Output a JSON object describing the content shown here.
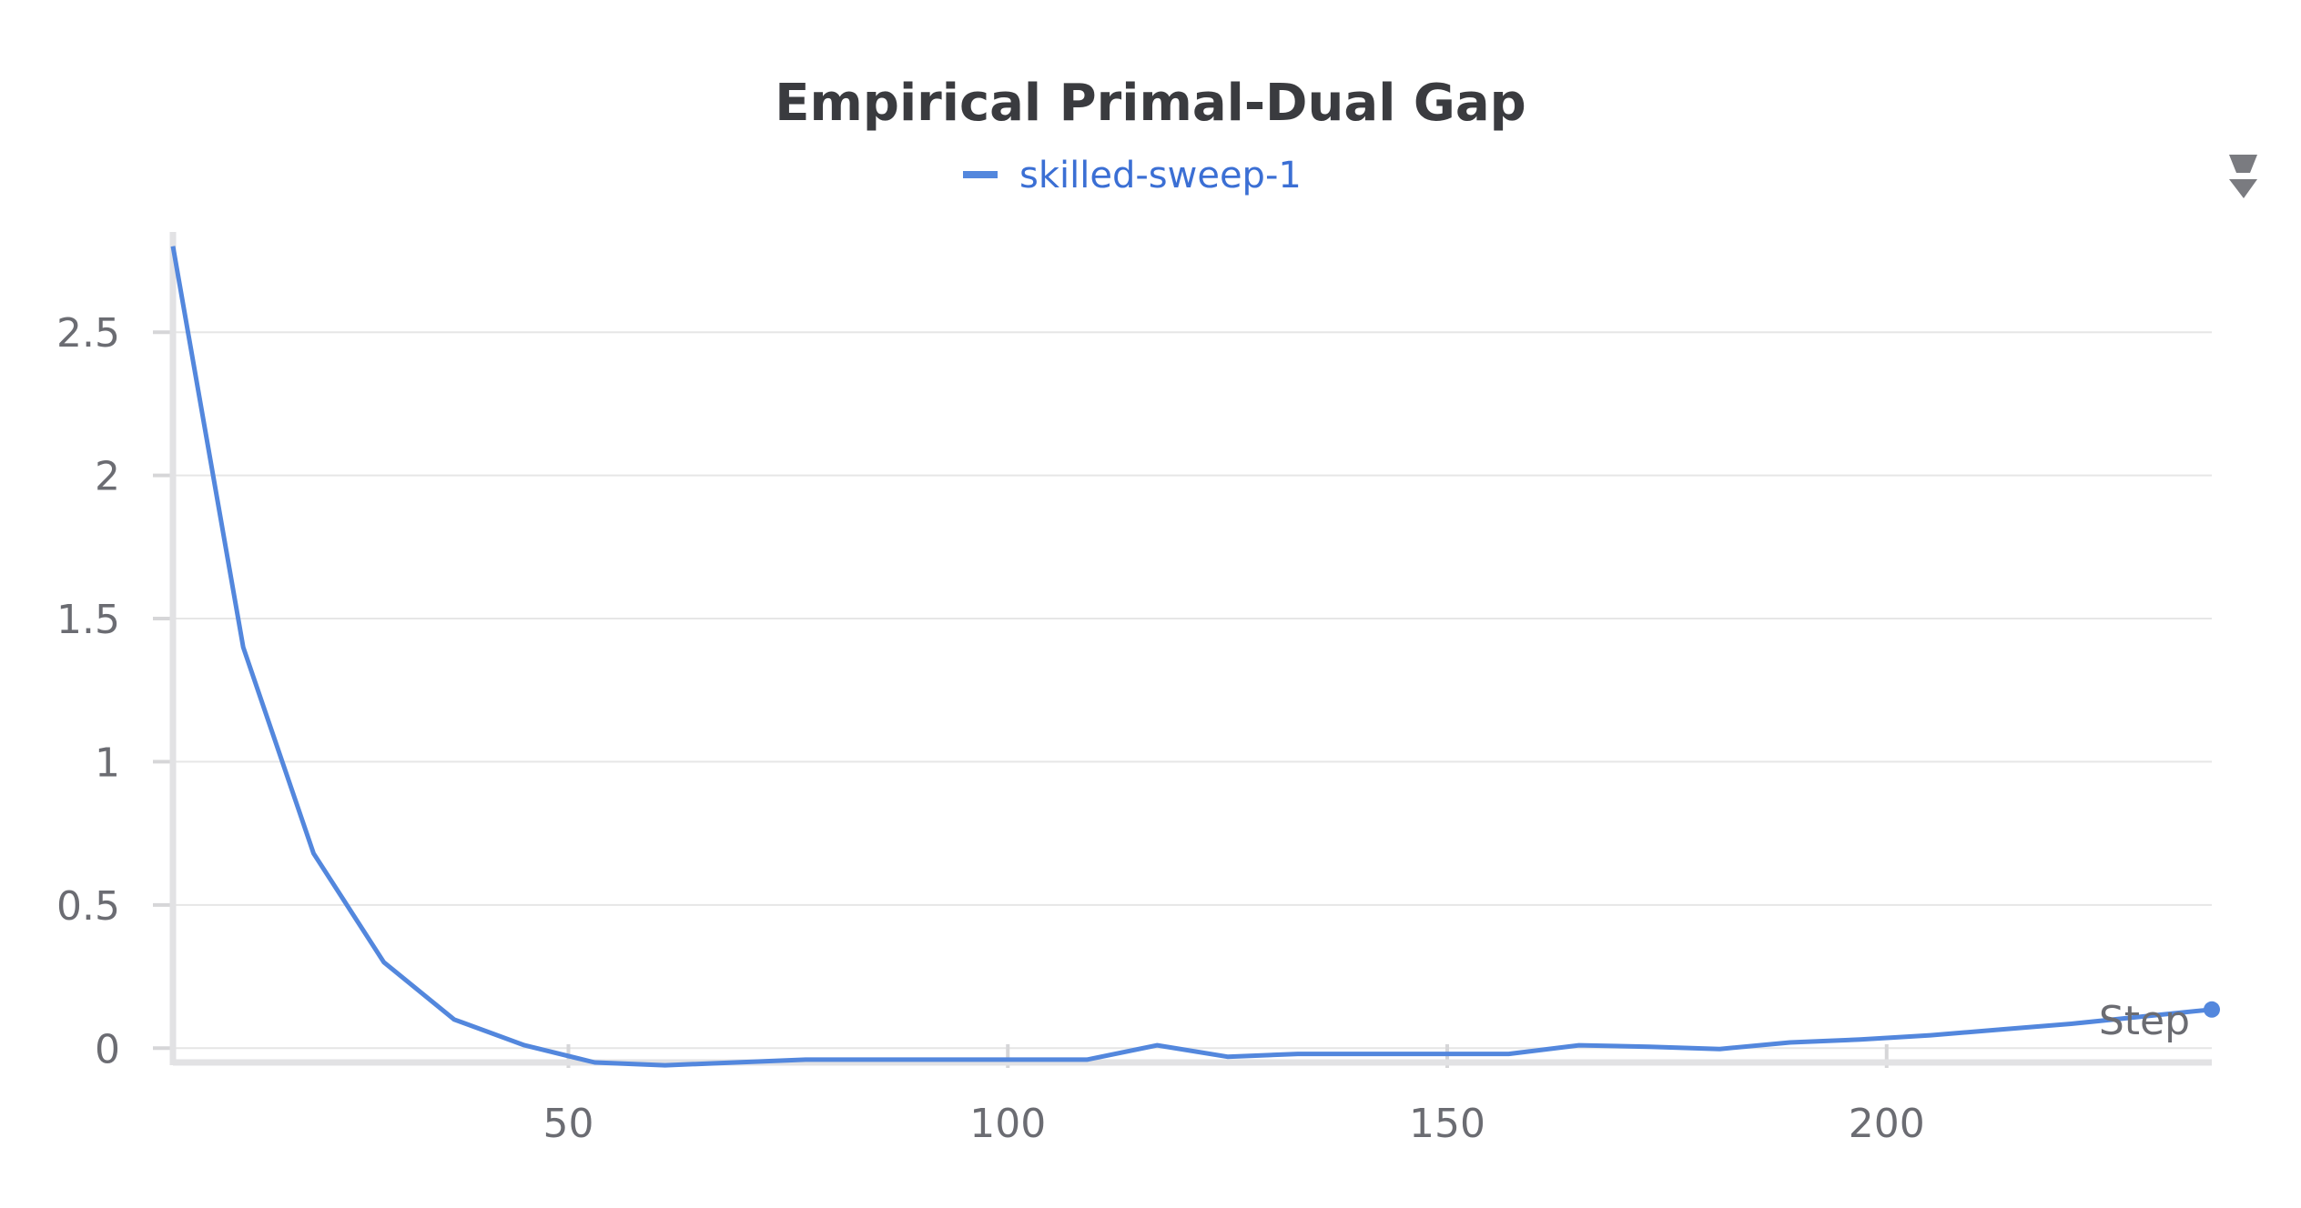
{
  "chart_data": {
    "type": "line",
    "title": "Empirical Primal-Dual Gap",
    "xlabel": "Step",
    "ylabel": "",
    "xlim": [
      5,
      237
    ],
    "ylim": [
      -0.05,
      2.85
    ],
    "xticks": [
      50,
      100,
      150,
      200
    ],
    "yticks": [
      0,
      0.5,
      1,
      1.5,
      2,
      2.5
    ],
    "ytick_labels": [
      "0",
      "0.5",
      "1",
      "1.5",
      "2",
      "2.5"
    ],
    "xtick_labels": [
      "50",
      "100",
      "150",
      "200"
    ],
    "grid": true,
    "legend_position": "top-center",
    "series": [
      {
        "name": "skilled-sweep-1",
        "color": "#5387dd",
        "x": [
          5,
          13,
          21,
          29,
          37,
          45,
          53,
          61,
          69,
          77,
          85,
          93,
          101,
          109,
          117,
          125,
          133,
          141,
          149,
          157,
          165,
          173,
          181,
          189,
          197,
          205,
          213,
          221,
          229,
          237
        ],
        "y": [
          2.8,
          1.4,
          0.68,
          0.3,
          0.1,
          0.01,
          -0.05,
          -0.06,
          -0.05,
          -0.04,
          -0.04,
          -0.04,
          -0.04,
          -0.04,
          0.01,
          -0.03,
          -0.02,
          -0.02,
          -0.02,
          -0.02,
          0.01,
          0.005,
          -0.003,
          0.02,
          0.03,
          0.045,
          0.065,
          0.085,
          0.11,
          0.135
        ]
      }
    ]
  },
  "toolbar": {
    "menu_icon": "sort-arrows-icon"
  }
}
